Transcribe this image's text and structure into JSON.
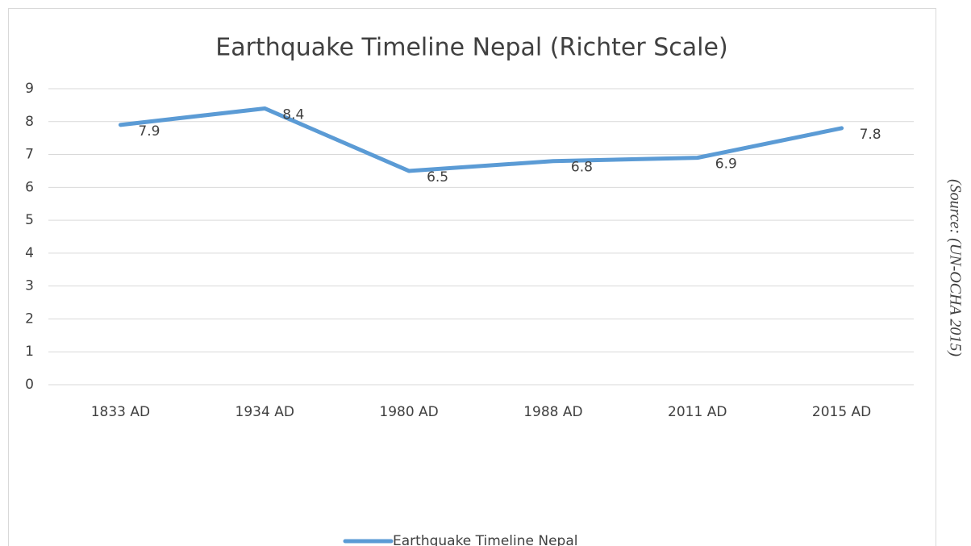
{
  "chart_data": {
    "type": "line",
    "title": "Earthquake Timeline Nepal (Richter Scale)",
    "categories": [
      "1833 AD",
      "1934 AD",
      "1980 AD",
      "1988 AD",
      "2011 AD",
      "2015 AD"
    ],
    "series": [
      {
        "name": "Earthquake Timeline Nepal",
        "color": "#5b9bd5",
        "values": [
          7.9,
          8.4,
          6.5,
          6.8,
          6.9,
          7.8
        ]
      }
    ],
    "ylim": [
      0,
      9
    ],
    "yticks": [
      0,
      1,
      2,
      3,
      4,
      5,
      6,
      7,
      8,
      9
    ],
    "grid": true,
    "legend": "bottom",
    "source": "(Source: (UN-OCHA 2015)"
  }
}
